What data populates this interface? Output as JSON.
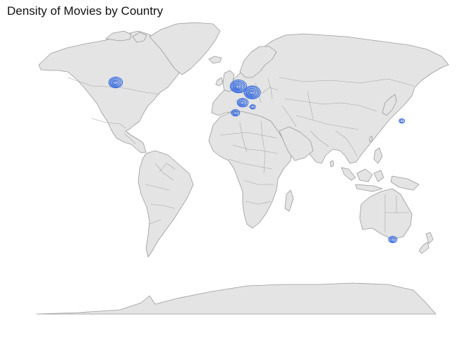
{
  "title": "Density of Movies by Country",
  "colors": {
    "land_fill": "#e4e4e4",
    "land_stroke": "#9a9a9a",
    "contour": "#2f66e0",
    "background": "#ffffff"
  },
  "chart_data": {
    "type": "density-contour-map",
    "projection": "equirectangular",
    "lon_range": [
      -180,
      180
    ],
    "lat_range": [
      -60,
      85
    ],
    "density_centers": [
      {
        "region": "Canada",
        "lon": -108,
        "lat": 55,
        "levels": 5
      },
      {
        "region": "United Kingdom",
        "lon": -2,
        "lat": 53,
        "levels": 6
      },
      {
        "region": "Germany / Central Europe",
        "lon": 10,
        "lat": 50,
        "levels": 6
      },
      {
        "region": "France",
        "lon": 2,
        "lat": 45,
        "levels": 4
      },
      {
        "region": "Spain",
        "lon": -4,
        "lat": 40,
        "levels": 3
      },
      {
        "region": "Italy",
        "lon": 11,
        "lat": 43,
        "levels": 2
      },
      {
        "region": "Japan",
        "lon": 140,
        "lat": 36,
        "levels": 2
      },
      {
        "region": "Australia",
        "lon": 132,
        "lat": -23,
        "levels": 3
      }
    ]
  }
}
